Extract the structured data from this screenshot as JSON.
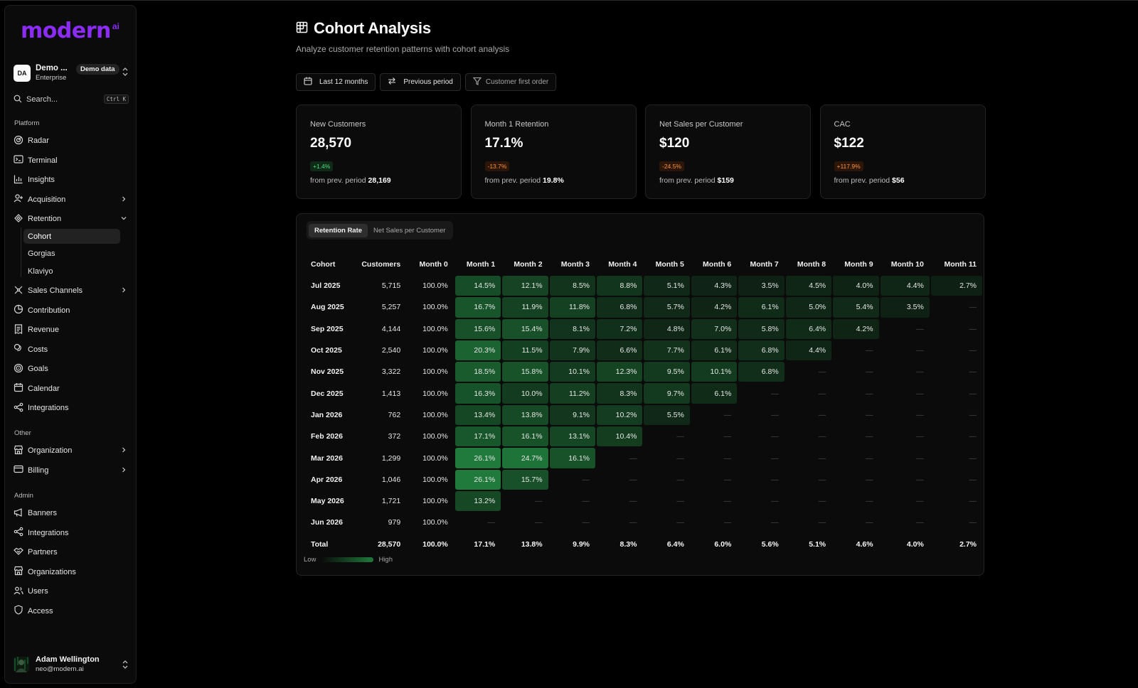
{
  "brand": {
    "logo_text": "modern",
    "logo_sup": "ai"
  },
  "workspace": {
    "initials": "DA",
    "name": "Demo ...",
    "plan": "Enterprise",
    "badge": "Demo data"
  },
  "search": {
    "placeholder": "Search...",
    "shortcut": "Ctrl K"
  },
  "sidebar": {
    "platform_label": "Platform",
    "platform": [
      {
        "label": "Radar",
        "icon": "radar-icon"
      },
      {
        "label": "Terminal",
        "icon": "terminal-icon"
      },
      {
        "label": "Insights",
        "icon": "bar-chart-icon"
      },
      {
        "label": "Acquisition",
        "icon": "user-plus-icon"
      },
      {
        "label": "Retention",
        "icon": "retention-icon"
      }
    ],
    "retention_sub": [
      "Cohort",
      "Gorgias",
      "Klaviyo"
    ],
    "platform2": [
      {
        "label": "Sales Channels",
        "icon": "channels-icon"
      },
      {
        "label": "Contribution",
        "icon": "pie-icon"
      },
      {
        "label": "Revenue",
        "icon": "receipt-icon"
      },
      {
        "label": "Costs",
        "icon": "coins-icon"
      },
      {
        "label": "Goals",
        "icon": "target-icon"
      },
      {
        "label": "Calendar",
        "icon": "calendar-icon"
      },
      {
        "label": "Integrations",
        "icon": "share-icon"
      }
    ],
    "other_label": "Other",
    "other": [
      {
        "label": "Organization",
        "icon": "store-icon"
      },
      {
        "label": "Billing",
        "icon": "card-icon"
      }
    ],
    "admin_label": "Admin",
    "admin": [
      {
        "label": "Banners",
        "icon": "megaphone-icon"
      },
      {
        "label": "Integrations",
        "icon": "share-icon"
      },
      {
        "label": "Partners",
        "icon": "handshake-icon"
      },
      {
        "label": "Organizations",
        "icon": "store-icon"
      },
      {
        "label": "Users",
        "icon": "users-icon"
      },
      {
        "label": "Access",
        "icon": "shield-icon"
      }
    ]
  },
  "user": {
    "name": "Adam Wellington",
    "email": "neo@modern.ai"
  },
  "page": {
    "title": "Cohort Analysis",
    "subtitle": "Analyze customer retention patterns with cohort analysis"
  },
  "filters": {
    "date_range": "Last 12 months",
    "compare": "Previous period",
    "cohort_type": "Customer first order"
  },
  "kpis": [
    {
      "label": "New Customers",
      "value": "28,570",
      "change": "+1.4%",
      "trend": "up",
      "prev_label": "from prev. period",
      "prev_value": "28,169"
    },
    {
      "label": "Month 1 Retention",
      "value": "17.1%",
      "change": "-13.7%",
      "trend": "down",
      "prev_label": "from prev. period",
      "prev_value": "19.8%"
    },
    {
      "label": "Net Sales per Customer",
      "value": "$120",
      "change": "-24.5%",
      "trend": "down",
      "prev_label": "from prev. period",
      "prev_value": "$159"
    },
    {
      "label": "CAC",
      "value": "$122",
      "change": "+117.9%",
      "trend": "down",
      "prev_label": "from prev. period",
      "prev_value": "$56"
    }
  ],
  "tabs": [
    "Retention Rate",
    "Net Sales per Customer"
  ],
  "table": {
    "headers": [
      "Cohort",
      "Customers",
      "Month 0",
      "Month 1",
      "Month 2",
      "Month 3",
      "Month 4",
      "Month 5",
      "Month 6",
      "Month 7",
      "Month 8",
      "Month 9",
      "Month 10",
      "Month 11"
    ],
    "empty": "—",
    "rows": [
      {
        "cohort": "Jul 2025",
        "customers": "5,715",
        "m0": "100.0%",
        "cells": [
          14.5,
          12.1,
          8.5,
          8.8,
          5.1,
          4.3,
          3.5,
          4.5,
          4.0,
          4.4,
          2.7
        ]
      },
      {
        "cohort": "Aug 2025",
        "customers": "5,257",
        "m0": "100.0%",
        "cells": [
          16.7,
          11.9,
          11.8,
          6.8,
          5.7,
          4.2,
          6.1,
          5.0,
          5.4,
          3.5,
          null
        ]
      },
      {
        "cohort": "Sep 2025",
        "customers": "4,144",
        "m0": "100.0%",
        "cells": [
          15.6,
          15.4,
          8.1,
          7.2,
          4.8,
          7.0,
          5.8,
          6.4,
          4.2,
          null,
          null
        ]
      },
      {
        "cohort": "Oct 2025",
        "customers": "2,540",
        "m0": "100.0%",
        "cells": [
          20.3,
          11.5,
          7.9,
          6.6,
          7.7,
          6.1,
          6.8,
          4.4,
          null,
          null,
          null
        ]
      },
      {
        "cohort": "Nov 2025",
        "customers": "3,322",
        "m0": "100.0%",
        "cells": [
          18.5,
          15.8,
          10.1,
          12.3,
          9.5,
          10.1,
          6.8,
          null,
          null,
          null,
          null
        ]
      },
      {
        "cohort": "Dec 2025",
        "customers": "1,413",
        "m0": "100.0%",
        "cells": [
          16.3,
          10.0,
          11.2,
          8.3,
          9.7,
          6.1,
          null,
          null,
          null,
          null,
          null
        ]
      },
      {
        "cohort": "Jan 2026",
        "customers": "762",
        "m0": "100.0%",
        "cells": [
          13.4,
          13.8,
          9.1,
          10.2,
          5.5,
          null,
          null,
          null,
          null,
          null,
          null
        ]
      },
      {
        "cohort": "Feb 2026",
        "customers": "372",
        "m0": "100.0%",
        "cells": [
          17.1,
          16.1,
          13.1,
          10.4,
          null,
          null,
          null,
          null,
          null,
          null,
          null
        ]
      },
      {
        "cohort": "Mar 2026",
        "customers": "1,299",
        "m0": "100.0%",
        "cells": [
          26.1,
          24.7,
          16.1,
          null,
          null,
          null,
          null,
          null,
          null,
          null,
          null
        ]
      },
      {
        "cohort": "Apr 2026",
        "customers": "1,046",
        "m0": "100.0%",
        "cells": [
          26.1,
          15.7,
          null,
          null,
          null,
          null,
          null,
          null,
          null,
          null,
          null
        ]
      },
      {
        "cohort": "May 2026",
        "customers": "1,721",
        "m0": "100.0%",
        "cells": [
          13.2,
          null,
          null,
          null,
          null,
          null,
          null,
          null,
          null,
          null,
          null
        ]
      },
      {
        "cohort": "Jun 2026",
        "customers": "979",
        "m0": "100.0%",
        "cells": [
          null,
          null,
          null,
          null,
          null,
          null,
          null,
          null,
          null,
          null,
          null
        ]
      }
    ],
    "total": {
      "label": "Total",
      "customers": "28,570",
      "values": [
        "100.0%",
        "17.1%",
        "13.8%",
        "9.9%",
        "8.3%",
        "6.4%",
        "6.0%",
        "5.6%",
        "5.1%",
        "4.6%",
        "4.0%",
        "2.7%"
      ]
    }
  },
  "legend": {
    "low": "Low",
    "high": "High"
  },
  "colors": {
    "accent": "#8b2cf5",
    "heat_high": "#1f7a3b",
    "positive": "#4ade80",
    "negative": "#fb923c"
  }
}
